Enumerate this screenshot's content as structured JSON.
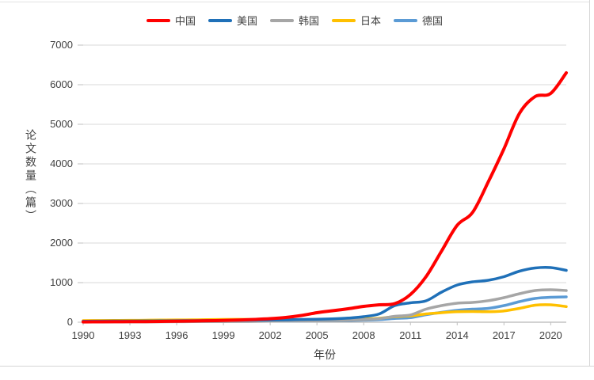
{
  "page": {
    "background": "#ffffff",
    "edge_color": "#d6d6d6"
  },
  "chart_data": {
    "type": "line",
    "title": "",
    "xlabel": "年份",
    "ylabel": "论文数量（篇）",
    "x": [
      1990,
      1991,
      1992,
      1993,
      1994,
      1995,
      1996,
      1997,
      1998,
      1999,
      2000,
      2001,
      2002,
      2003,
      2004,
      2005,
      2006,
      2007,
      2008,
      2009,
      2010,
      2011,
      2012,
      2013,
      2014,
      2015,
      2016,
      2017,
      2018,
      2019,
      2020,
      2021
    ],
    "xlim": [
      1990,
      2021
    ],
    "ylim": [
      0,
      7000
    ],
    "xticks": [
      1990,
      1993,
      1996,
      1999,
      2002,
      2005,
      2008,
      2011,
      2014,
      2017,
      2020
    ],
    "yticks": [
      0,
      1000,
      2000,
      3000,
      4000,
      5000,
      6000,
      7000
    ],
    "grid": "horizontal",
    "gridline_color": "#d9d9d9",
    "axis_line_color": "#a6a6a6",
    "tick_color": "#bfbfbf",
    "legend_position": "top",
    "series": [
      {
        "key": "china",
        "name": "中国",
        "color": "#ff0000",
        "values": [
          8,
          10,
          12,
          14,
          16,
          20,
          25,
          30,
          38,
          45,
          55,
          70,
          90,
          120,
          170,
          240,
          290,
          340,
          400,
          440,
          470,
          700,
          1150,
          1800,
          2450,
          2780,
          3550,
          4380,
          5280,
          5700,
          5780,
          6300
        ]
      },
      {
        "key": "usa",
        "name": "美国",
        "color": "#1f70b8",
        "values": [
          25,
          28,
          30,
          30,
          32,
          35,
          38,
          40,
          42,
          45,
          48,
          52,
          55,
          60,
          70,
          75,
          85,
          105,
          140,
          210,
          420,
          490,
          540,
          760,
          940,
          1020,
          1060,
          1150,
          1290,
          1370,
          1380,
          1310
        ]
      },
      {
        "key": "korea",
        "name": "韩国",
        "color": "#a6a6a6",
        "values": [
          5,
          6,
          7,
          8,
          9,
          10,
          12,
          14,
          15,
          16,
          18,
          20,
          24,
          28,
          32,
          38,
          45,
          55,
          65,
          90,
          150,
          185,
          330,
          420,
          480,
          500,
          545,
          620,
          720,
          800,
          820,
          800
        ]
      },
      {
        "key": "japan",
        "name": "日本",
        "color": "#ffc000",
        "values": [
          40,
          42,
          45,
          48,
          50,
          55,
          58,
          60,
          65,
          70,
          72,
          70,
          68,
          65,
          65,
          68,
          70,
          75,
          82,
          100,
          140,
          160,
          210,
          240,
          265,
          270,
          265,
          285,
          350,
          430,
          440,
          395
        ]
      },
      {
        "key": "germany",
        "name": "德国",
        "color": "#5b9bd5",
        "values": [
          12,
          13,
          14,
          15,
          16,
          17,
          18,
          20,
          21,
          22,
          24,
          25,
          27,
          30,
          33,
          36,
          40,
          45,
          52,
          65,
          95,
          115,
          190,
          250,
          300,
          330,
          350,
          420,
          520,
          600,
          630,
          640
        ]
      }
    ]
  }
}
